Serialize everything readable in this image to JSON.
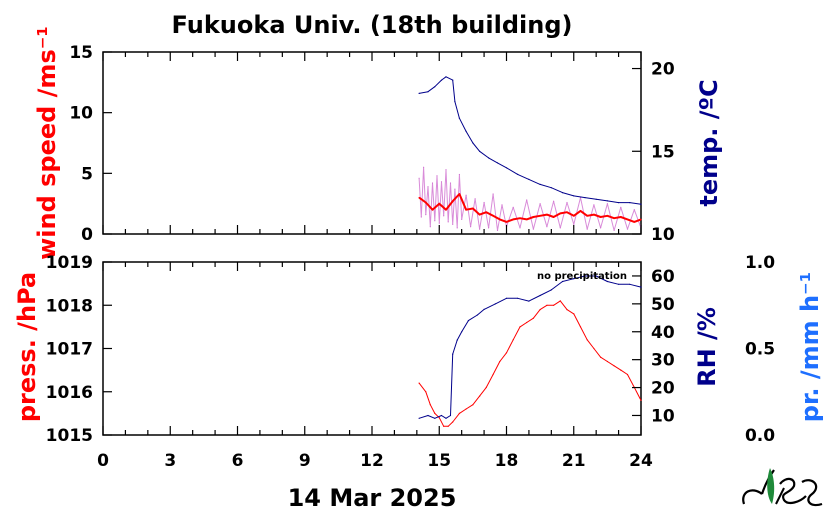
{
  "header": {
    "title": "Fukuoka Univ. (18th building)"
  },
  "footer": {
    "date": "14 Mar 2025"
  },
  "colors": {
    "wind": "#ff0000",
    "wind_raw": "#cc66cc",
    "temp": "#00008b",
    "press": "#ff0000",
    "rh": "#00008b",
    "precip": "#1e6fff"
  },
  "chart_data": [
    {
      "type": "line",
      "panel": "top",
      "xlabel": "",
      "xlim": [
        0,
        24
      ],
      "xticks": [
        "0",
        "3",
        "6",
        "9",
        "12",
        "15",
        "18",
        "21",
        "24"
      ],
      "left_axis": {
        "label": "wind speed /ms⁻¹",
        "ylim": [
          0,
          15
        ],
        "ticks": [
          "0",
          "5",
          "10",
          "15"
        ]
      },
      "right_axis": {
        "label": "temp. /ºC",
        "ylim": [
          10,
          21
        ],
        "ticks": [
          "10",
          "15",
          "20"
        ]
      },
      "series": [
        {
          "axis": "left",
          "style": "raw",
          "x": [
            14.1,
            14.2,
            14.3,
            14.4,
            14.5,
            14.6,
            14.7,
            14.8,
            14.9,
            15.0,
            15.1,
            15.2,
            15.3,
            15.4,
            15.5,
            15.6,
            15.7,
            15.8,
            15.9,
            16.0,
            16.2,
            16.4,
            16.6,
            16.8,
            17.0,
            17.2,
            17.4,
            17.6,
            17.8,
            18.0,
            18.3,
            18.6,
            18.9,
            19.2,
            19.5,
            19.8,
            20.1,
            20.4,
            20.7,
            21.0,
            21.3,
            21.6,
            21.9,
            22.2,
            22.5,
            22.8,
            23.1,
            23.4,
            23.7,
            24.0
          ],
          "values": [
            4.6,
            1.4,
            5.5,
            1.6,
            3.9,
            0.6,
            4.2,
            1.1,
            4.8,
            0.9,
            4.3,
            1.5,
            5.3,
            1.0,
            4.2,
            0.8,
            3.7,
            0.5,
            4.9,
            1.2,
            3.2,
            0.6,
            2.9,
            0.4,
            2.6,
            0.5,
            3.3,
            0.3,
            2.4,
            0.6,
            2.2,
            0.5,
            2.8,
            0.4,
            2.5,
            0.6,
            2.7,
            0.5,
            2.6,
            0.8,
            3.0,
            0.4,
            2.4,
            0.5,
            2.5,
            0.3,
            2.2,
            0.4,
            2.0,
            0.5
          ]
        },
        {
          "axis": "left",
          "style": "mean",
          "x": [
            14.1,
            14.4,
            14.7,
            15.0,
            15.3,
            15.6,
            15.9,
            16.2,
            16.5,
            16.8,
            17.1,
            17.4,
            17.7,
            18.0,
            18.3,
            18.6,
            18.9,
            19.2,
            19.5,
            19.8,
            20.1,
            20.4,
            20.7,
            21.0,
            21.3,
            21.6,
            21.9,
            22.2,
            22.5,
            22.8,
            23.1,
            23.4,
            23.7,
            24.0
          ],
          "values": [
            3.0,
            2.6,
            2.0,
            2.5,
            2.0,
            2.7,
            3.3,
            2.0,
            2.1,
            1.6,
            1.8,
            1.5,
            1.2,
            1.0,
            1.2,
            1.3,
            1.2,
            1.4,
            1.5,
            1.6,
            1.4,
            1.7,
            1.8,
            1.5,
            1.9,
            1.5,
            1.6,
            1.4,
            1.5,
            1.3,
            1.4,
            1.2,
            1.0,
            1.2
          ]
        },
        {
          "axis": "right",
          "style": "temp",
          "x": [
            14.1,
            14.5,
            14.8,
            15.1,
            15.3,
            15.6,
            15.7,
            15.9,
            16.2,
            16.5,
            16.8,
            17.2,
            17.6,
            18.0,
            18.5,
            19.0,
            19.5,
            20.0,
            20.5,
            21.0,
            21.5,
            22.0,
            22.5,
            23.0,
            23.5,
            24.0
          ],
          "values": [
            18.5,
            18.6,
            18.9,
            19.3,
            19.5,
            19.3,
            18.0,
            17.0,
            16.2,
            15.5,
            15.0,
            14.6,
            14.3,
            14.0,
            13.6,
            13.3,
            13.0,
            12.8,
            12.5,
            12.3,
            12.2,
            12.1,
            12.0,
            11.9,
            11.9,
            11.8
          ]
        }
      ]
    },
    {
      "type": "line",
      "panel": "bottom",
      "xlabel": "14 Mar 2025",
      "xlim": [
        0,
        24
      ],
      "xticks": [
        "0",
        "3",
        "6",
        "9",
        "12",
        "15",
        "18",
        "21",
        "24"
      ],
      "left_axis": {
        "label": "press. /hPa",
        "ylim": [
          1015,
          1019
        ],
        "ticks": [
          "1015",
          "1016",
          "1017",
          "1018",
          "1019"
        ]
      },
      "right_axis": {
        "label": "RH /%",
        "ylim": [
          3,
          65
        ],
        "ticks": [
          "10",
          "20",
          "30",
          "40",
          "50",
          "60"
        ]
      },
      "far_right_axis": {
        "label": "pr. /mm h⁻¹",
        "ylim": [
          0,
          1
        ],
        "ticks": [
          "0.0",
          "0.5",
          "1.0"
        ]
      },
      "annotation": "no precipitation",
      "series": [
        {
          "axis": "left",
          "style": "press",
          "x": [
            14.1,
            14.4,
            14.6,
            14.8,
            15.0,
            15.2,
            15.4,
            15.6,
            15.9,
            16.2,
            16.5,
            16.8,
            17.1,
            17.4,
            17.7,
            18.0,
            18.3,
            18.6,
            18.9,
            19.2,
            19.5,
            19.8,
            20.1,
            20.4,
            20.7,
            21.0,
            21.3,
            21.6,
            21.9,
            22.2,
            22.5,
            22.8,
            23.1,
            23.4,
            23.7,
            24.0
          ],
          "values": [
            1016.2,
            1016.0,
            1015.7,
            1015.5,
            1015.4,
            1015.2,
            1015.2,
            1015.3,
            1015.5,
            1015.6,
            1015.7,
            1015.9,
            1016.1,
            1016.4,
            1016.7,
            1016.9,
            1017.2,
            1017.5,
            1017.6,
            1017.7,
            1017.9,
            1018.0,
            1018.0,
            1018.1,
            1017.9,
            1017.8,
            1017.5,
            1017.2,
            1017.0,
            1016.8,
            1016.7,
            1016.6,
            1016.5,
            1016.4,
            1016.1,
            1015.8
          ]
        },
        {
          "axis": "right",
          "style": "rh",
          "x": [
            14.1,
            14.5,
            14.8,
            15.1,
            15.3,
            15.5,
            15.6,
            15.8,
            16.0,
            16.3,
            16.7,
            17.0,
            17.5,
            18.0,
            18.5,
            19.0,
            19.5,
            20.0,
            20.5,
            21.0,
            21.5,
            22.0,
            22.5,
            23.0,
            23.5,
            24.0
          ],
          "values": [
            9,
            10,
            9,
            10,
            9,
            10,
            32,
            37,
            40,
            44,
            46,
            48,
            50,
            52,
            52,
            51,
            53,
            55,
            58,
            59,
            60,
            60,
            58,
            57,
            57,
            56
          ]
        }
      ]
    }
  ]
}
